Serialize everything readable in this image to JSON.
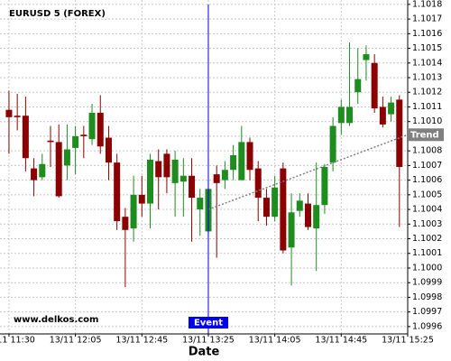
{
  "chart_data": {
    "type": "candlestick",
    "title": "EURUSD 5 (FOREX)",
    "watermark": "www.delkos.com",
    "xlabel": "Date",
    "grid": true,
    "up_color": "#1f8c1f",
    "down_color": "#8b0000",
    "xlim": [
      -1.08,
      48
    ],
    "xticks": [
      {
        "value": 0,
        "label": "13/11 11:30"
      },
      {
        "value": 8,
        "label": "13/11 12:05"
      },
      {
        "value": 16,
        "label": "13/11 12:45"
      },
      {
        "value": 24,
        "label": "13/11 13:25"
      },
      {
        "value": 32,
        "label": "13/11 14:05"
      },
      {
        "value": 40,
        "label": "13/11 14:45"
      },
      {
        "value": 48,
        "label": "13/11 15:25"
      }
    ],
    "ylim": [
      1.09955,
      1.10183
    ],
    "yticks": [
      {
        "value": 1.0996,
        "label": "1.0996"
      },
      {
        "value": 1.0997,
        "label": "1.0997"
      },
      {
        "value": 1.0998,
        "label": "1.0998"
      },
      {
        "value": 1.0999,
        "label": "1.0999"
      },
      {
        "value": 1.1,
        "label": "1.1000"
      },
      {
        "value": 1.1001,
        "label": "1.1001"
      },
      {
        "value": 1.1002,
        "label": "1.1002"
      },
      {
        "value": 1.1003,
        "label": "1.1003"
      },
      {
        "value": 1.1004,
        "label": "1.1004"
      },
      {
        "value": 1.1005,
        "label": "1.1005"
      },
      {
        "value": 1.1006,
        "label": "1.1006"
      },
      {
        "value": 1.1007,
        "label": "1.1007"
      },
      {
        "value": 1.1008,
        "label": "1.1008"
      },
      {
        "value": 1.1009,
        "label": "1.1009"
      },
      {
        "value": 1.101,
        "label": "1.1010"
      },
      {
        "value": 1.1011,
        "label": "1.1011"
      },
      {
        "value": 1.1012,
        "label": "1.1012"
      },
      {
        "value": 1.1013,
        "label": "1.1013"
      },
      {
        "value": 1.1014,
        "label": "1.1014"
      },
      {
        "value": 1.1015,
        "label": "1.1015"
      },
      {
        "value": 1.1016,
        "label": "1.1016"
      },
      {
        "value": 1.1017,
        "label": "1.1017"
      },
      {
        "value": 1.1018,
        "label": "1.1018"
      }
    ],
    "open": [
      1.10108,
      1.10104,
      1.10104,
      1.10068,
      1.10062,
      1.10087,
      1.10086,
      1.1007,
      1.10082,
      1.10091,
      1.10088,
      1.10106,
      1.10089,
      1.10072,
      1.10035,
      1.10027,
      1.1005,
      1.10044,
      1.10073,
      1.10078,
      1.10058,
      1.10059,
      1.10063,
      1.1004,
      1.10025,
      1.10064,
      1.1006,
      1.10067,
      1.1006,
      1.10086,
      1.10068,
      1.10048,
      1.10035,
      1.10068,
      1.10014,
      1.10039,
      1.10044,
      1.10027,
      1.10043,
      1.10072,
      1.10099,
      1.10099,
      1.1012,
      1.10142,
      1.1014,
      1.1011,
      1.10105,
      1.10115
    ],
    "high": [
      1.10121,
      1.10119,
      1.10117,
      1.10075,
      1.10078,
      1.10097,
      1.10098,
      1.10098,
      1.10097,
      1.10097,
      1.10112,
      1.10118,
      1.10097,
      1.10078,
      1.10041,
      1.10063,
      1.10063,
      1.10078,
      1.10081,
      1.10081,
      1.1008,
      1.10075,
      1.10075,
      1.10054,
      1.1006,
      1.1007,
      1.10073,
      1.10084,
      1.10097,
      1.10089,
      1.10073,
      1.10054,
      1.10063,
      1.10072,
      1.10051,
      1.10051,
      1.10051,
      1.10072,
      1.10071,
      1.10103,
      1.10115,
      1.10154,
      1.1015,
      1.10152,
      1.10146,
      1.10117,
      1.10117,
      1.10118
    ],
    "low": [
      1.10078,
      1.10094,
      1.10066,
      1.10049,
      1.1006,
      1.10069,
      1.10048,
      1.1006,
      1.10064,
      1.10075,
      1.10084,
      1.10078,
      1.1006,
      1.10026,
      1.09987,
      1.10018,
      1.10035,
      1.10027,
      1.1004,
      1.10051,
      1.10035,
      1.10035,
      1.10018,
      1.10022,
      1.10023,
      1.10007,
      1.10054,
      1.1006,
      1.1006,
      1.1006,
      1.10032,
      1.10029,
      1.10032,
      1.1001,
      1.09988,
      1.10035,
      1.10026,
      1.09998,
      1.10037,
      1.10066,
      1.10091,
      1.10097,
      1.10112,
      1.10128,
      1.10106,
      1.10096,
      1.101,
      1.10028
    ],
    "close": [
      1.10103,
      1.10103,
      1.10075,
      1.1006,
      1.10071,
      1.10086,
      1.10049,
      1.10081,
      1.1009,
      1.1009,
      1.10106,
      1.10083,
      1.10072,
      1.10032,
      1.10026,
      1.1005,
      1.10044,
      1.10074,
      1.10062,
      1.10062,
      1.10074,
      1.10063,
      1.10048,
      1.10048,
      1.10054,
      1.10058,
      1.10067,
      1.10077,
      1.10086,
      1.10067,
      1.10048,
      1.10035,
      1.10055,
      1.10012,
      1.10038,
      1.10046,
      1.10028,
      1.10043,
      1.10069,
      1.10097,
      1.1011,
      1.1011,
      1.10129,
      1.10146,
      1.10109,
      1.10098,
      1.10113,
      1.10069
    ],
    "event": {
      "label": "Event",
      "x": 24,
      "color": "#0000ee"
    },
    "trend": {
      "label": "Trend",
      "x": [
        24,
        48
      ],
      "y": [
        1.1004,
        1.10091
      ],
      "color": "#808080"
    }
  }
}
